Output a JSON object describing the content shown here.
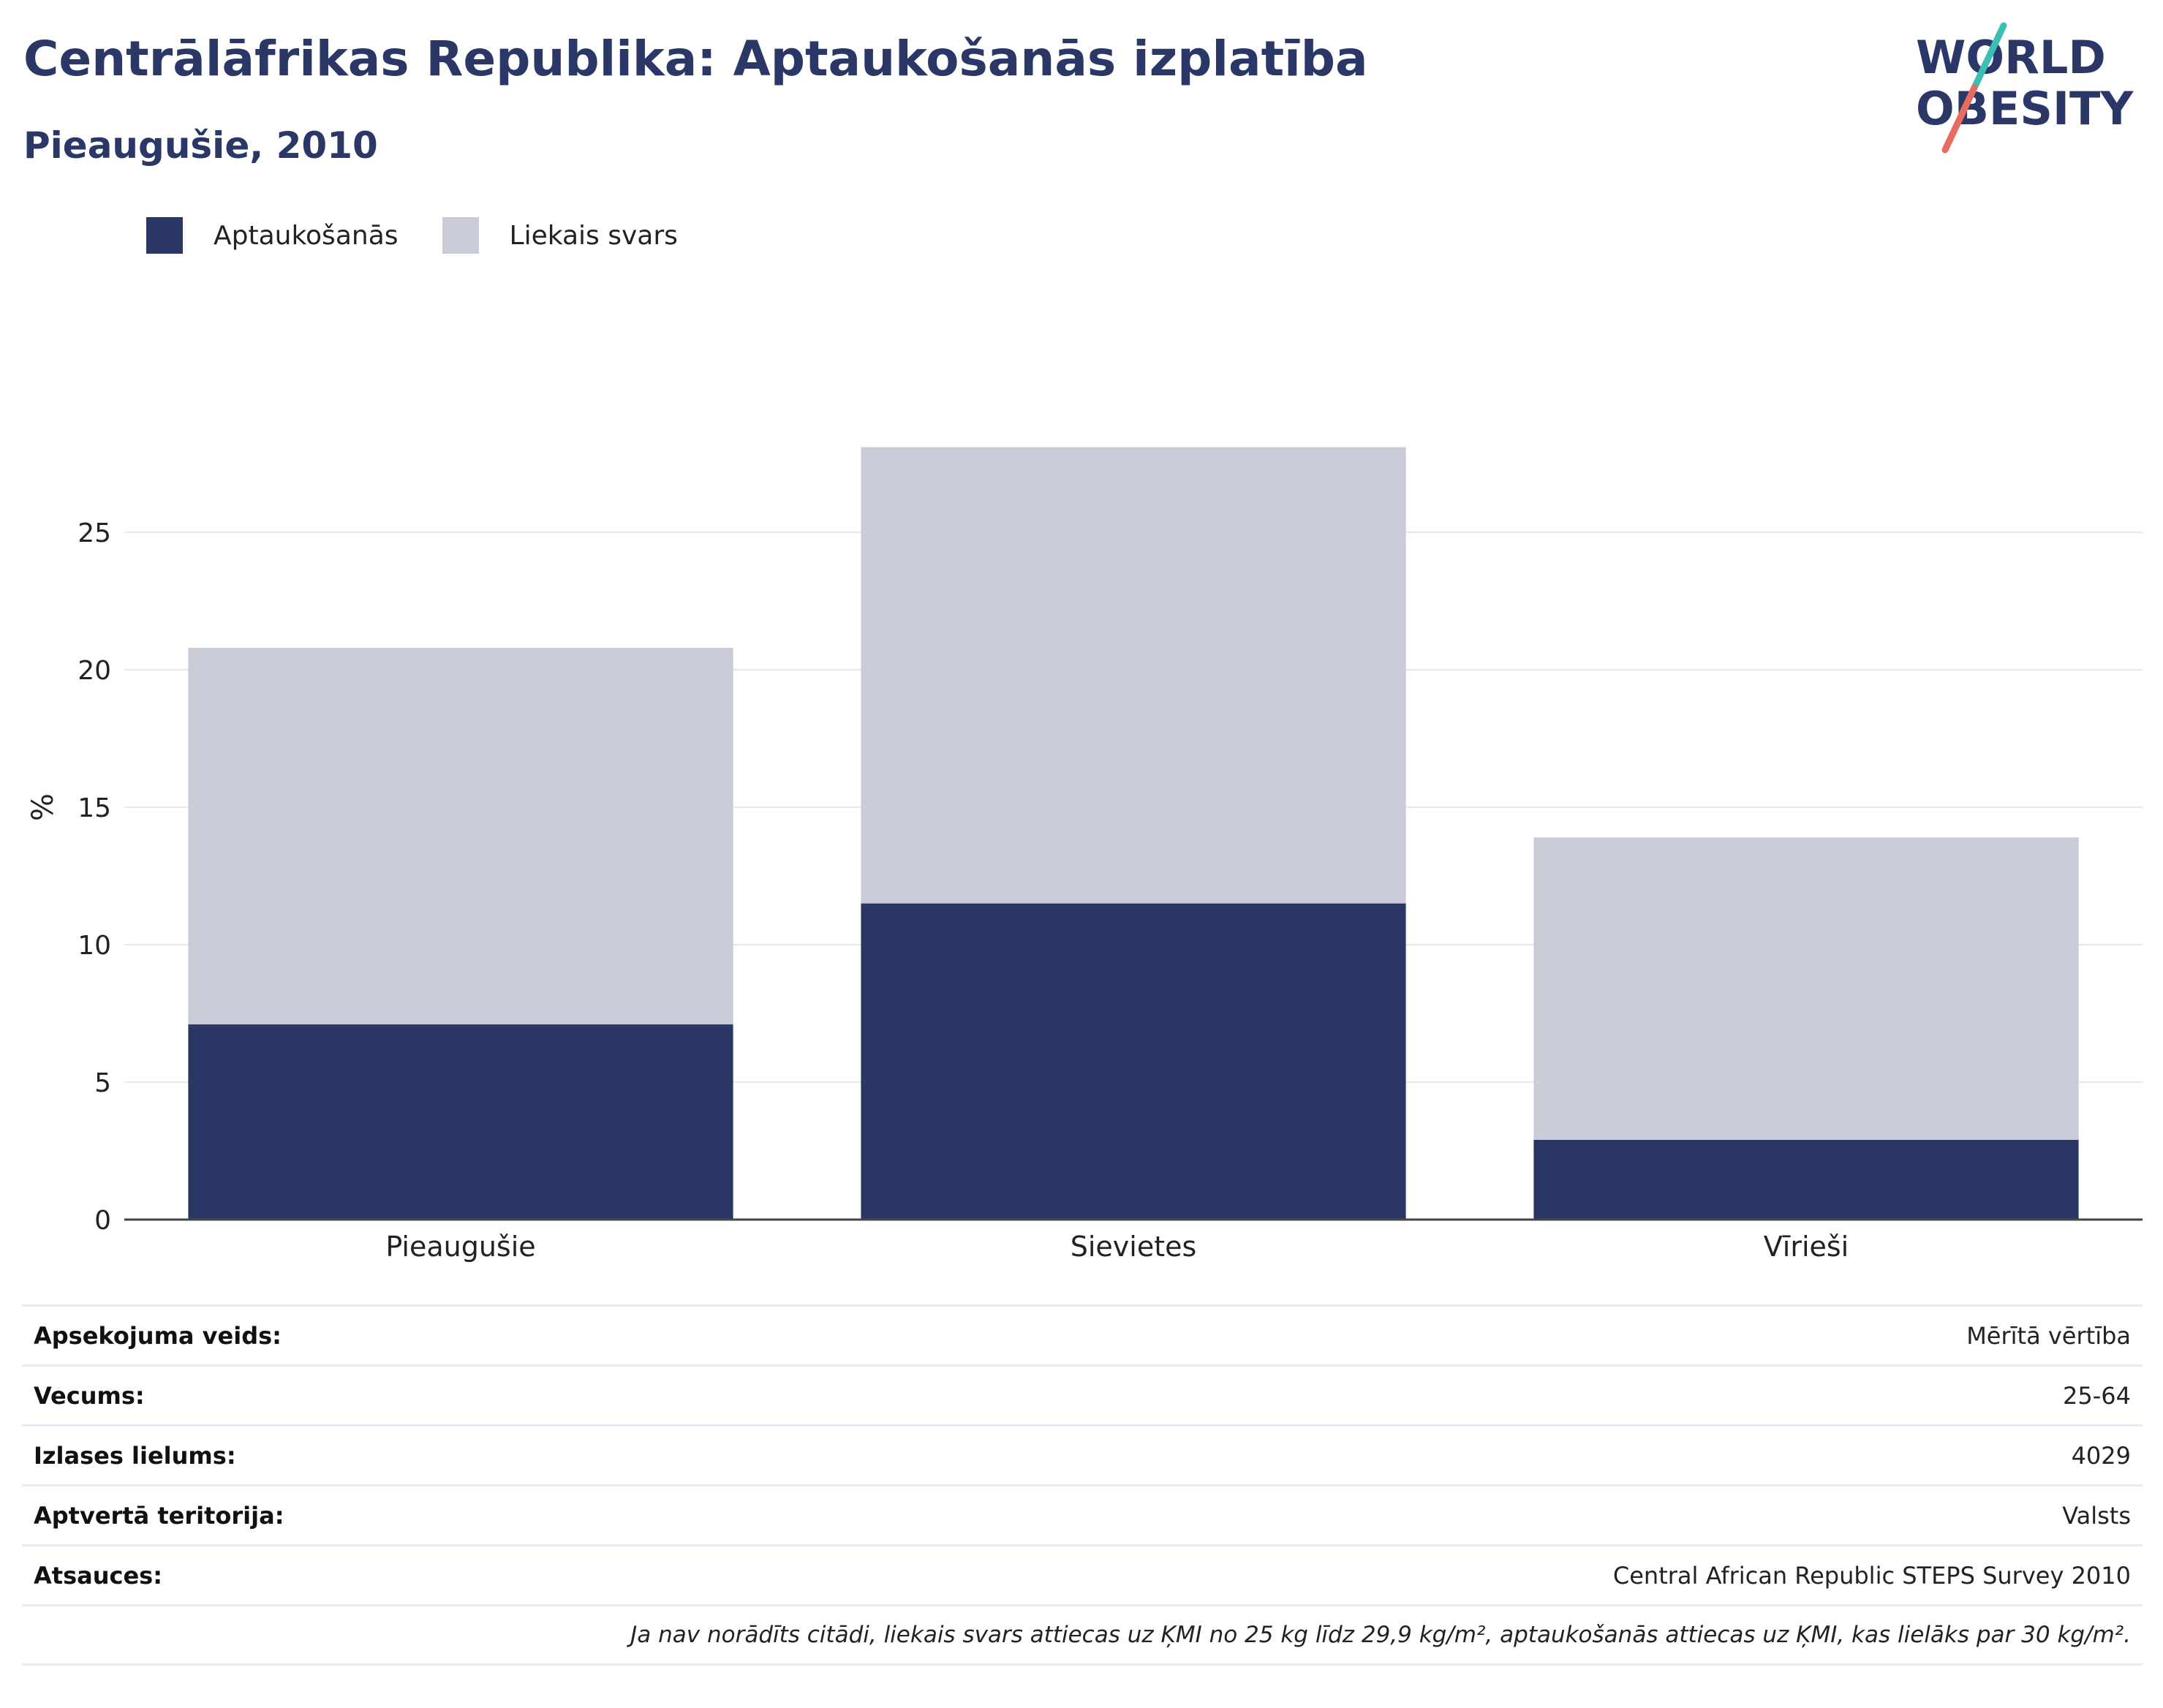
{
  "header": {
    "title": "Centrālāfrikas Republika: Aptaukošanās izplatība",
    "subtitle": "Pieaugušie, 2010"
  },
  "logo": {
    "line1": "WORLD",
    "line2": "OBESITY",
    "colors": {
      "text": "#2b3766",
      "slash_top": "#3bbfb5",
      "slash_bottom": "#e86b5f"
    }
  },
  "legend": {
    "items": [
      {
        "label": "Aptaukošanās",
        "color": "#2a3663"
      },
      {
        "label": "Liekais svars",
        "color": "#c9ccd7"
      }
    ]
  },
  "chart_data": {
    "type": "bar",
    "stacked": true,
    "categories": [
      "Pieaugušie",
      "Sievietes",
      "Vīrieši"
    ],
    "series": [
      {
        "name": "Aptaukošanās",
        "values": [
          7.1,
          11.5,
          2.9
        ],
        "color": "#2a3663"
      },
      {
        "name": "Liekais svars",
        "values": [
          13.7,
          16.6,
          11.0
        ],
        "color": "#c9ccd7"
      }
    ],
    "ylabel": "%",
    "ylim": [
      0,
      30
    ],
    "yticks": [
      0,
      5,
      10,
      15,
      20,
      25
    ],
    "grid": true,
    "legend_position": "top-left"
  },
  "meta": {
    "rows": [
      {
        "key": "Apsekojuma veids:",
        "value": "Mērītā vērtība"
      },
      {
        "key": "Vecums:",
        "value": "25-64"
      },
      {
        "key": "Izlases lielums:",
        "value": "4029"
      },
      {
        "key": "Aptvertā teritorija:",
        "value": "Valsts"
      },
      {
        "key": "Atsauces:",
        "value": "Central African Republic STEPS Survey 2010"
      }
    ],
    "note": "Ja nav norādīts citādi, liekais svars attiecas uz ĶMI no 25 kg līdz 29,9 kg/m², aptaukošanās attiecas uz ĶMI, kas lielāks par 30 kg/m²."
  }
}
